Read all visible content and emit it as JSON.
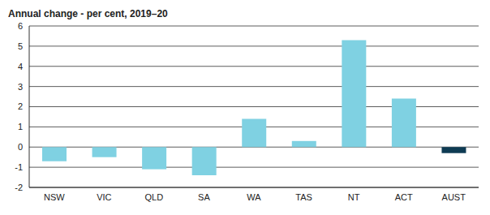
{
  "chart_data": {
    "type": "bar",
    "title": "Annual change - per cent, 2019–20",
    "categories": [
      "NSW",
      "VIC",
      "QLD",
      "SA",
      "WA",
      "TAS",
      "NT",
      "ACT",
      "AUST"
    ],
    "values": [
      -0.7,
      -0.5,
      -1.1,
      -1.4,
      1.4,
      0.3,
      5.3,
      2.4,
      -0.3
    ],
    "colors": [
      "#7fd1e2",
      "#7fd1e2",
      "#7fd1e2",
      "#7fd1e2",
      "#7fd1e2",
      "#7fd1e2",
      "#7fd1e2",
      "#7fd1e2",
      "#0e3b53"
    ],
    "ylim": [
      -2,
      6
    ],
    "yticks": [
      -2,
      -1,
      0,
      1,
      2,
      3,
      4,
      5,
      6
    ],
    "grid": true
  }
}
